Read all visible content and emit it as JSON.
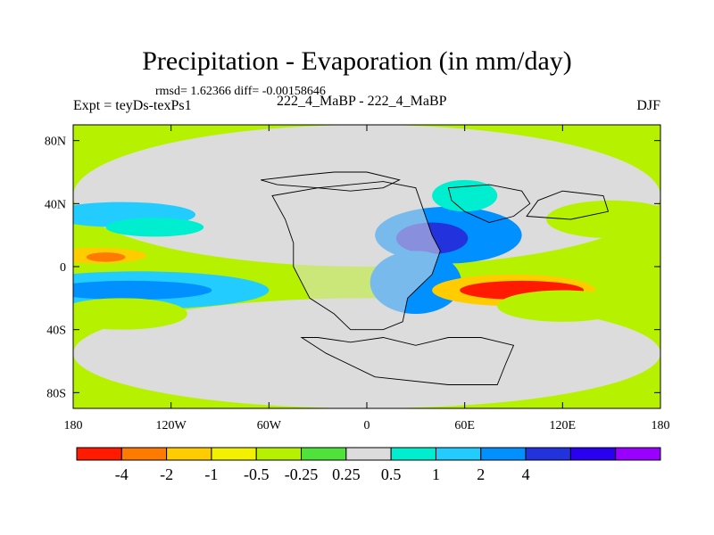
{
  "title": "Precipitation - Evaporation (in mm/day)",
  "stats": "rmsd= 1.62366 diff= -0.00158646",
  "expt_label": "Expt = teyDs-texPs1",
  "expt_name": "222_4_MaBP - 222_4_MaBP",
  "season": "DJF",
  "chart_data": {
    "type": "heatmap",
    "title": "Precipitation - Evaporation (in mm/day)",
    "xlabel": "",
    "ylabel": "",
    "x_axis": {
      "range": [
        -180,
        180
      ],
      "ticks": [
        -180,
        -120,
        -60,
        0,
        60,
        120,
        180
      ],
      "tick_labels": [
        "180",
        "120W",
        "60W",
        "0",
        "60E",
        "120E",
        "180"
      ]
    },
    "y_axis": {
      "range": [
        -90,
        90
      ],
      "ticks": [
        80,
        40,
        0,
        -40,
        -80
      ],
      "tick_labels": [
        "80N",
        "40N",
        "0",
        "40S",
        "80S"
      ]
    },
    "colorbar": {
      "colors": [
        "#ff1a00",
        "#ff7a00",
        "#ffcc00",
        "#f2f200",
        "#b6f200",
        "#4fe23a",
        "#dcdcdc",
        "#00eed0",
        "#22ccff",
        "#0090ff",
        "#2233dd",
        "#2a00f0",
        "#9a00ff"
      ],
      "labels": [
        "-4",
        "-2",
        "-1",
        "-0.5",
        "-0.25",
        "0.25",
        "0.5",
        "1",
        "2",
        "4"
      ],
      "levels": [
        -4,
        -2,
        -1,
        -0.5,
        -0.25,
        0.25,
        0.5,
        1,
        2,
        4
      ]
    },
    "field_features": [
      {
        "lon": 0,
        "lat": 45,
        "rx": 180,
        "ry": 45,
        "value": 0.3
      },
      {
        "lon": 0,
        "lat": -55,
        "rx": 180,
        "ry": 35,
        "value": 0.3
      },
      {
        "lon": -150,
        "lat": 33,
        "rx": 45,
        "ry": 8,
        "value": 1.5
      },
      {
        "lon": -130,
        "lat": 25,
        "rx": 30,
        "ry": 6,
        "value": 0.6
      },
      {
        "lon": -160,
        "lat": 0,
        "rx": 40,
        "ry": 10,
        "value": -0.3
      },
      {
        "lon": -165,
        "lat": 7,
        "rx": 30,
        "ry": 5,
        "value": -1.5
      },
      {
        "lon": -160,
        "lat": 6,
        "rx": 12,
        "ry": 3,
        "value": -3
      },
      {
        "lon": -140,
        "lat": -15,
        "rx": 80,
        "ry": 12,
        "value": 1.0
      },
      {
        "lon": -145,
        "lat": -15,
        "rx": 50,
        "ry": 6,
        "value": 3.0
      },
      {
        "lon": -150,
        "lat": -30,
        "rx": 40,
        "ry": 10,
        "value": -0.4
      },
      {
        "lon": 50,
        "lat": 20,
        "rx": 45,
        "ry": 18,
        "value": 2.5
      },
      {
        "lon": 40,
        "lat": 18,
        "rx": 22,
        "ry": 10,
        "value": 6.0
      },
      {
        "lon": 30,
        "lat": -10,
        "rx": 28,
        "ry": 20,
        "value": 3.0
      },
      {
        "lon": 90,
        "lat": -15,
        "rx": 50,
        "ry": 10,
        "value": -1.5
      },
      {
        "lon": 95,
        "lat": -15,
        "rx": 38,
        "ry": 6,
        "value": -4.5
      },
      {
        "lon": 120,
        "lat": -25,
        "rx": 40,
        "ry": 10,
        "value": -0.4
      },
      {
        "lon": 150,
        "lat": 30,
        "rx": 40,
        "ry": 12,
        "value": -0.4
      },
      {
        "lon": 60,
        "lat": 45,
        "rx": 20,
        "ry": 10,
        "value": 0.6
      }
    ]
  }
}
